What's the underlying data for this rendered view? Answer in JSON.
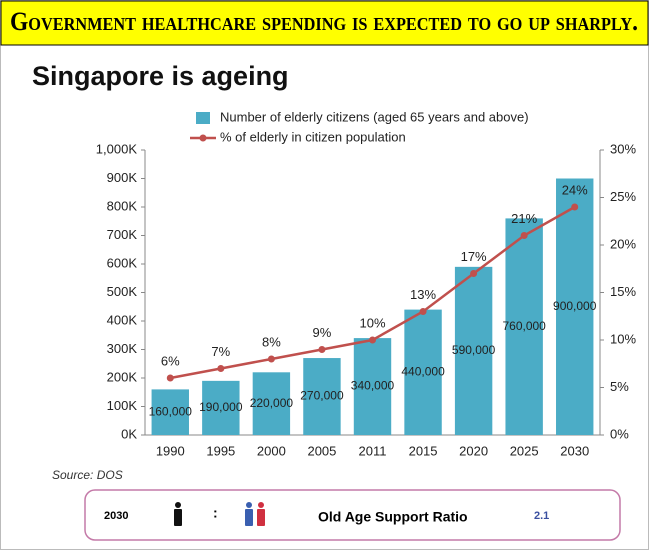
{
  "banner": "Government healthcare spending is expected to go up sharply.",
  "title": "Singapore is ageing",
  "chart_data": {
    "type": "bar",
    "categories": [
      "1990",
      "1995",
      "2000",
      "2005",
      "2011",
      "2015",
      "2020",
      "2025",
      "2030"
    ],
    "series": [
      {
        "name": "Number of elderly citizens (aged 65 years and above)",
        "color": "#4bacc6",
        "type": "bar",
        "values": [
          160000,
          190000,
          220000,
          270000,
          340000,
          440000,
          590000,
          760000,
          900000
        ],
        "value_labels": [
          "160,000",
          "190,000",
          "220,000",
          "270,000",
          "340,000",
          "440,000",
          "590,000",
          "760,000",
          "900,000"
        ]
      },
      {
        "name": "% of elderly in citizen population",
        "color": "#c0504d",
        "type": "line",
        "axis": "y2",
        "values": [
          6,
          7,
          8,
          9,
          10,
          13,
          17,
          21,
          24
        ],
        "value_labels": [
          "6%",
          "7%",
          "8%",
          "9%",
          "10%",
          "13%",
          "17%",
          "21%",
          "24%"
        ]
      }
    ],
    "ylim": [
      0,
      1000000
    ],
    "yticks": [
      {
        "value": 0,
        "label": "0K"
      },
      {
        "value": 100000,
        "label": "100K"
      },
      {
        "value": 200000,
        "label": "200K"
      },
      {
        "value": 300000,
        "label": "300K"
      },
      {
        "value": 400000,
        "label": "400K"
      },
      {
        "value": 500000,
        "label": "500K"
      },
      {
        "value": 600000,
        "label": "600K"
      },
      {
        "value": 700000,
        "label": "700K"
      },
      {
        "value": 800000,
        "label": "800K"
      },
      {
        "value": 900000,
        "label": "900K"
      },
      {
        "value": 1000000,
        "label": "1,000K"
      }
    ],
    "y2lim": [
      0,
      30
    ],
    "y2ticks": [
      {
        "value": 0,
        "label": "0%"
      },
      {
        "value": 5,
        "label": "5%"
      },
      {
        "value": 10,
        "label": "10%"
      },
      {
        "value": 15,
        "label": "15%"
      },
      {
        "value": 20,
        "label": "20%"
      },
      {
        "value": 25,
        "label": "25%"
      },
      {
        "value": 30,
        "label": "30%"
      }
    ],
    "grid": false
  },
  "source": "Source: DOS",
  "footer": {
    "year": "2030",
    "separator": ":",
    "label": "Old Age Support Ratio",
    "ratio": 2.1
  }
}
